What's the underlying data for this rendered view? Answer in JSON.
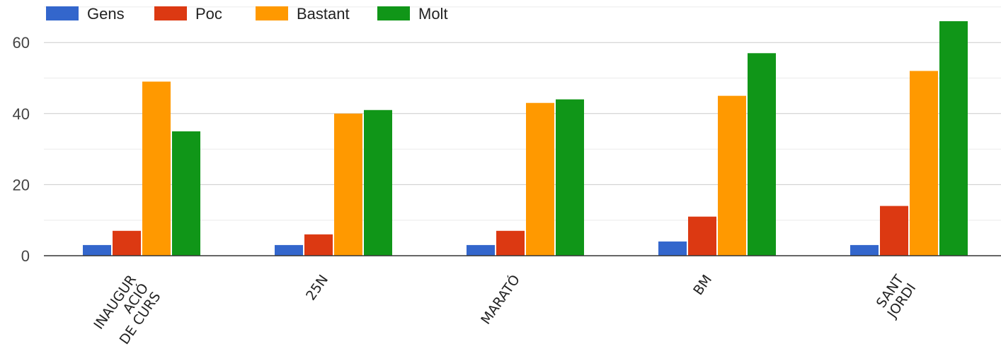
{
  "chart_data": {
    "type": "bar",
    "categories": [
      [
        "INAUGUR",
        "ACIÓ",
        "DE CURS"
      ],
      [
        "25N"
      ],
      [
        "MARATÓ"
      ],
      [
        "BM"
      ],
      [
        "SANT",
        "JORDI"
      ]
    ],
    "series": [
      {
        "name": "Gens",
        "color": "#3366cc",
        "values": [
          3,
          3,
          3,
          4,
          3
        ]
      },
      {
        "name": "Poc",
        "color": "#dc3912",
        "values": [
          7,
          6,
          7,
          11,
          14
        ]
      },
      {
        "name": "Bastant",
        "color": "#ff9900",
        "values": [
          49,
          40,
          43,
          45,
          52
        ]
      },
      {
        "name": "Molt",
        "color": "#109618",
        "values": [
          35,
          41,
          44,
          57,
          66
        ]
      }
    ],
    "ylim": [
      0,
      70
    ],
    "yticks": [
      "0",
      "20",
      "40",
      "60"
    ],
    "grid": true,
    "legend": "top-left",
    "title": "",
    "xlabel": "",
    "ylabel": ""
  }
}
